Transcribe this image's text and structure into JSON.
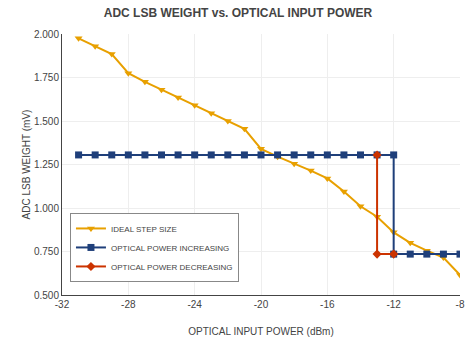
{
  "chart_data": {
    "type": "line",
    "title": "ADC LSB WEIGHT vs. OPTICAL INPUT POWER",
    "xlabel": "OPTICAL INPUT POWER (dBm)",
    "ylabel": "ADC LSB WEIGHT (mV)",
    "xlim": [
      -32,
      -8
    ],
    "ylim": [
      0.5,
      2.0
    ],
    "xticks": [
      -32,
      -28,
      -24,
      -20,
      -16,
      -12,
      -8
    ],
    "yticks": [
      {
        "value": 0.5,
        "label": "0.500"
      },
      {
        "value": 0.75,
        "label": "0.750"
      },
      {
        "value": 1.0,
        "label": "1.000"
      },
      {
        "value": 1.25,
        "label": "1.250"
      },
      {
        "value": 1.5,
        "label": "1.500"
      },
      {
        "value": 1.75,
        "label": "1.750"
      },
      {
        "value": 2.0,
        "label": "2.000"
      }
    ],
    "grid": true,
    "legend": "lower left",
    "series": [
      {
        "name": "IDEAL STEP SIZE",
        "color": "#E8A000",
        "marker": "triangle-down",
        "x": [
          -31,
          -30,
          -29,
          -28,
          -27,
          -26,
          -25,
          -24,
          -23,
          -22,
          -21,
          -20,
          -19,
          -18,
          -17,
          -16,
          -15,
          -14,
          -13,
          -12,
          -11,
          -10,
          -9,
          -8
        ],
        "values": [
          1.975,
          1.93,
          1.885,
          1.775,
          1.725,
          1.68,
          1.635,
          1.59,
          1.545,
          1.5,
          1.455,
          1.34,
          1.295,
          1.255,
          1.215,
          1.17,
          1.095,
          1.01,
          0.95,
          0.86,
          0.8,
          0.755,
          0.715,
          0.615
        ]
      },
      {
        "name": "OPTICAL POWER INCREASING",
        "color": "#1F3F7A",
        "marker": "square",
        "x": [
          -31,
          -30,
          -29,
          -28,
          -27,
          -26,
          -25,
          -24,
          -23,
          -22,
          -21,
          -20,
          -19,
          -18,
          -17,
          -16,
          -15,
          -14,
          -13,
          -12,
          -12,
          -11,
          -10,
          -9,
          -8
        ],
        "values": [
          1.305,
          1.305,
          1.305,
          1.305,
          1.305,
          1.305,
          1.305,
          1.305,
          1.305,
          1.305,
          1.305,
          1.305,
          1.305,
          1.305,
          1.305,
          1.305,
          1.305,
          1.305,
          1.305,
          1.305,
          0.735,
          0.735,
          0.735,
          0.735,
          0.735
        ]
      },
      {
        "name": "OPTICAL POWER DECREASING",
        "color": "#CC3300",
        "marker": "diamond",
        "x": [
          -13,
          -13,
          -12
        ],
        "values": [
          1.305,
          0.735,
          0.735
        ]
      }
    ]
  }
}
